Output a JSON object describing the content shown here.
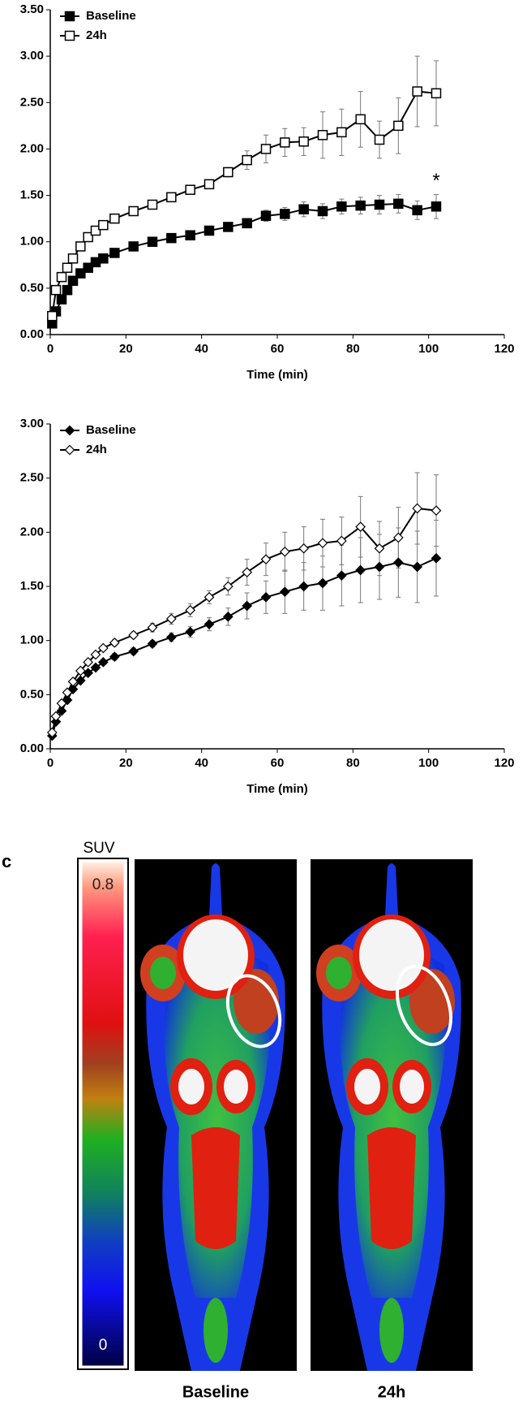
{
  "chart_data": [
    {
      "type": "line",
      "x": [
        0.5,
        1.5,
        3,
        4.5,
        6,
        8,
        10,
        12,
        14,
        17,
        22,
        27,
        32,
        37,
        42,
        47,
        52,
        57,
        62,
        67,
        72,
        77,
        82,
        87,
        92,
        97,
        102
      ],
      "series": [
        {
          "name": "Baseline",
          "color": "#000000",
          "marker": "square",
          "fill": "#000000",
          "values": [
            0.12,
            0.25,
            0.38,
            0.48,
            0.58,
            0.66,
            0.72,
            0.78,
            0.82,
            0.88,
            0.95,
            1.0,
            1.04,
            1.07,
            1.12,
            1.16,
            1.2,
            1.28,
            1.3,
            1.35,
            1.33,
            1.38,
            1.39,
            1.4,
            1.41,
            1.34,
            1.38
          ],
          "errors": [
            0.02,
            0.02,
            0.02,
            0.02,
            0.02,
            0.02,
            0.02,
            0.02,
            0.02,
            0.03,
            0.03,
            0.03,
            0.03,
            0.03,
            0.03,
            0.04,
            0.05,
            0.06,
            0.07,
            0.08,
            0.08,
            0.08,
            0.09,
            0.1,
            0.1,
            0.1,
            0.13
          ]
        },
        {
          "name": "24h",
          "color": "#000000",
          "marker": "square",
          "fill": "#ffffff",
          "values": [
            0.2,
            0.48,
            0.62,
            0.72,
            0.82,
            0.95,
            1.05,
            1.12,
            1.18,
            1.25,
            1.33,
            1.4,
            1.48,
            1.56,
            1.62,
            1.75,
            1.88,
            2.0,
            2.07,
            2.08,
            2.15,
            2.18,
            2.32,
            2.1,
            2.25,
            2.62,
            2.6
          ],
          "errors": [
            0.02,
            0.02,
            0.02,
            0.02,
            0.02,
            0.02,
            0.02,
            0.02,
            0.02,
            0.03,
            0.03,
            0.03,
            0.03,
            0.03,
            0.03,
            0.05,
            0.1,
            0.15,
            0.15,
            0.15,
            0.25,
            0.25,
            0.3,
            0.2,
            0.3,
            0.38,
            0.35
          ]
        }
      ],
      "xlabel": "Time (min)",
      "xlim": [
        0,
        120
      ],
      "xticks": [
        0,
        20,
        40,
        60,
        80,
        100,
        120
      ],
      "ylim": [
        0,
        3.5
      ],
      "yticks": [
        {
          "value": 0,
          "label": "0.00"
        },
        {
          "value": 0.5,
          "label": "0.50"
        },
        {
          "value": 1,
          "label": "1.00"
        },
        {
          "value": 1.5,
          "label": "1.50"
        },
        {
          "value": 2,
          "label": "2.00"
        },
        {
          "value": 2.5,
          "label": "2.50"
        },
        {
          "value": 3,
          "label": "3.00"
        },
        {
          "value": 3.5,
          "label": "3.50"
        }
      ],
      "legend": "upper left",
      "annotations": [
        {
          "text": "*",
          "x": 102,
          "y": 1.65
        }
      ]
    },
    {
      "type": "line",
      "x": [
        0.5,
        1.5,
        3,
        4.5,
        6,
        8,
        10,
        12,
        14,
        17,
        22,
        27,
        32,
        37,
        42,
        47,
        52,
        57,
        62,
        67,
        72,
        77,
        82,
        87,
        92,
        97,
        102
      ],
      "series": [
        {
          "name": "Baseline",
          "color": "#000000",
          "marker": "diamond",
          "fill": "#000000",
          "values": [
            0.12,
            0.25,
            0.35,
            0.45,
            0.55,
            0.63,
            0.7,
            0.75,
            0.8,
            0.85,
            0.9,
            0.97,
            1.03,
            1.08,
            1.15,
            1.22,
            1.32,
            1.4,
            1.45,
            1.5,
            1.53,
            1.6,
            1.65,
            1.68,
            1.72,
            1.68,
            1.76
          ],
          "errors": [
            0.02,
            0.02,
            0.02,
            0.02,
            0.02,
            0.02,
            0.02,
            0.02,
            0.02,
            0.03,
            0.03,
            0.03,
            0.04,
            0.05,
            0.06,
            0.08,
            0.12,
            0.15,
            0.2,
            0.22,
            0.25,
            0.28,
            0.3,
            0.3,
            0.32,
            0.33,
            0.35
          ]
        },
        {
          "name": "24h",
          "color": "#000000",
          "marker": "diamond",
          "fill": "#ffffff",
          "values": [
            0.15,
            0.3,
            0.42,
            0.52,
            0.62,
            0.72,
            0.8,
            0.87,
            0.93,
            0.98,
            1.05,
            1.12,
            1.2,
            1.28,
            1.4,
            1.5,
            1.63,
            1.75,
            1.82,
            1.85,
            1.9,
            1.92,
            2.05,
            1.85,
            1.95,
            2.22,
            2.2
          ],
          "errors": [
            0.02,
            0.02,
            0.02,
            0.02,
            0.02,
            0.02,
            0.02,
            0.02,
            0.02,
            0.03,
            0.03,
            0.04,
            0.05,
            0.06,
            0.06,
            0.08,
            0.12,
            0.15,
            0.18,
            0.2,
            0.22,
            0.22,
            0.28,
            0.25,
            0.28,
            0.33,
            0.33
          ]
        }
      ],
      "xlabel": "Time (min)",
      "xlim": [
        0,
        120
      ],
      "xticks": [
        0,
        20,
        40,
        60,
        80,
        100,
        120
      ],
      "ylim": [
        0,
        3
      ],
      "yticks": [
        {
          "value": 0,
          "label": "0.00"
        },
        {
          "value": 0.5,
          "label": "0.50"
        },
        {
          "value": 1,
          "label": "1.00"
        },
        {
          "value": 1.5,
          "label": "1.50"
        },
        {
          "value": 2,
          "label": "2.00"
        },
        {
          "value": 2.5,
          "label": "2.50"
        },
        {
          "value": 3,
          "label": "3.00"
        }
      ],
      "legend": "upper left"
    }
  ],
  "image_panel": {
    "panel_label": "c",
    "colorbar_title": "SUV",
    "colorbar_max": "0.8",
    "colorbar_min": "0",
    "images": [
      "Baseline",
      "24h"
    ]
  }
}
